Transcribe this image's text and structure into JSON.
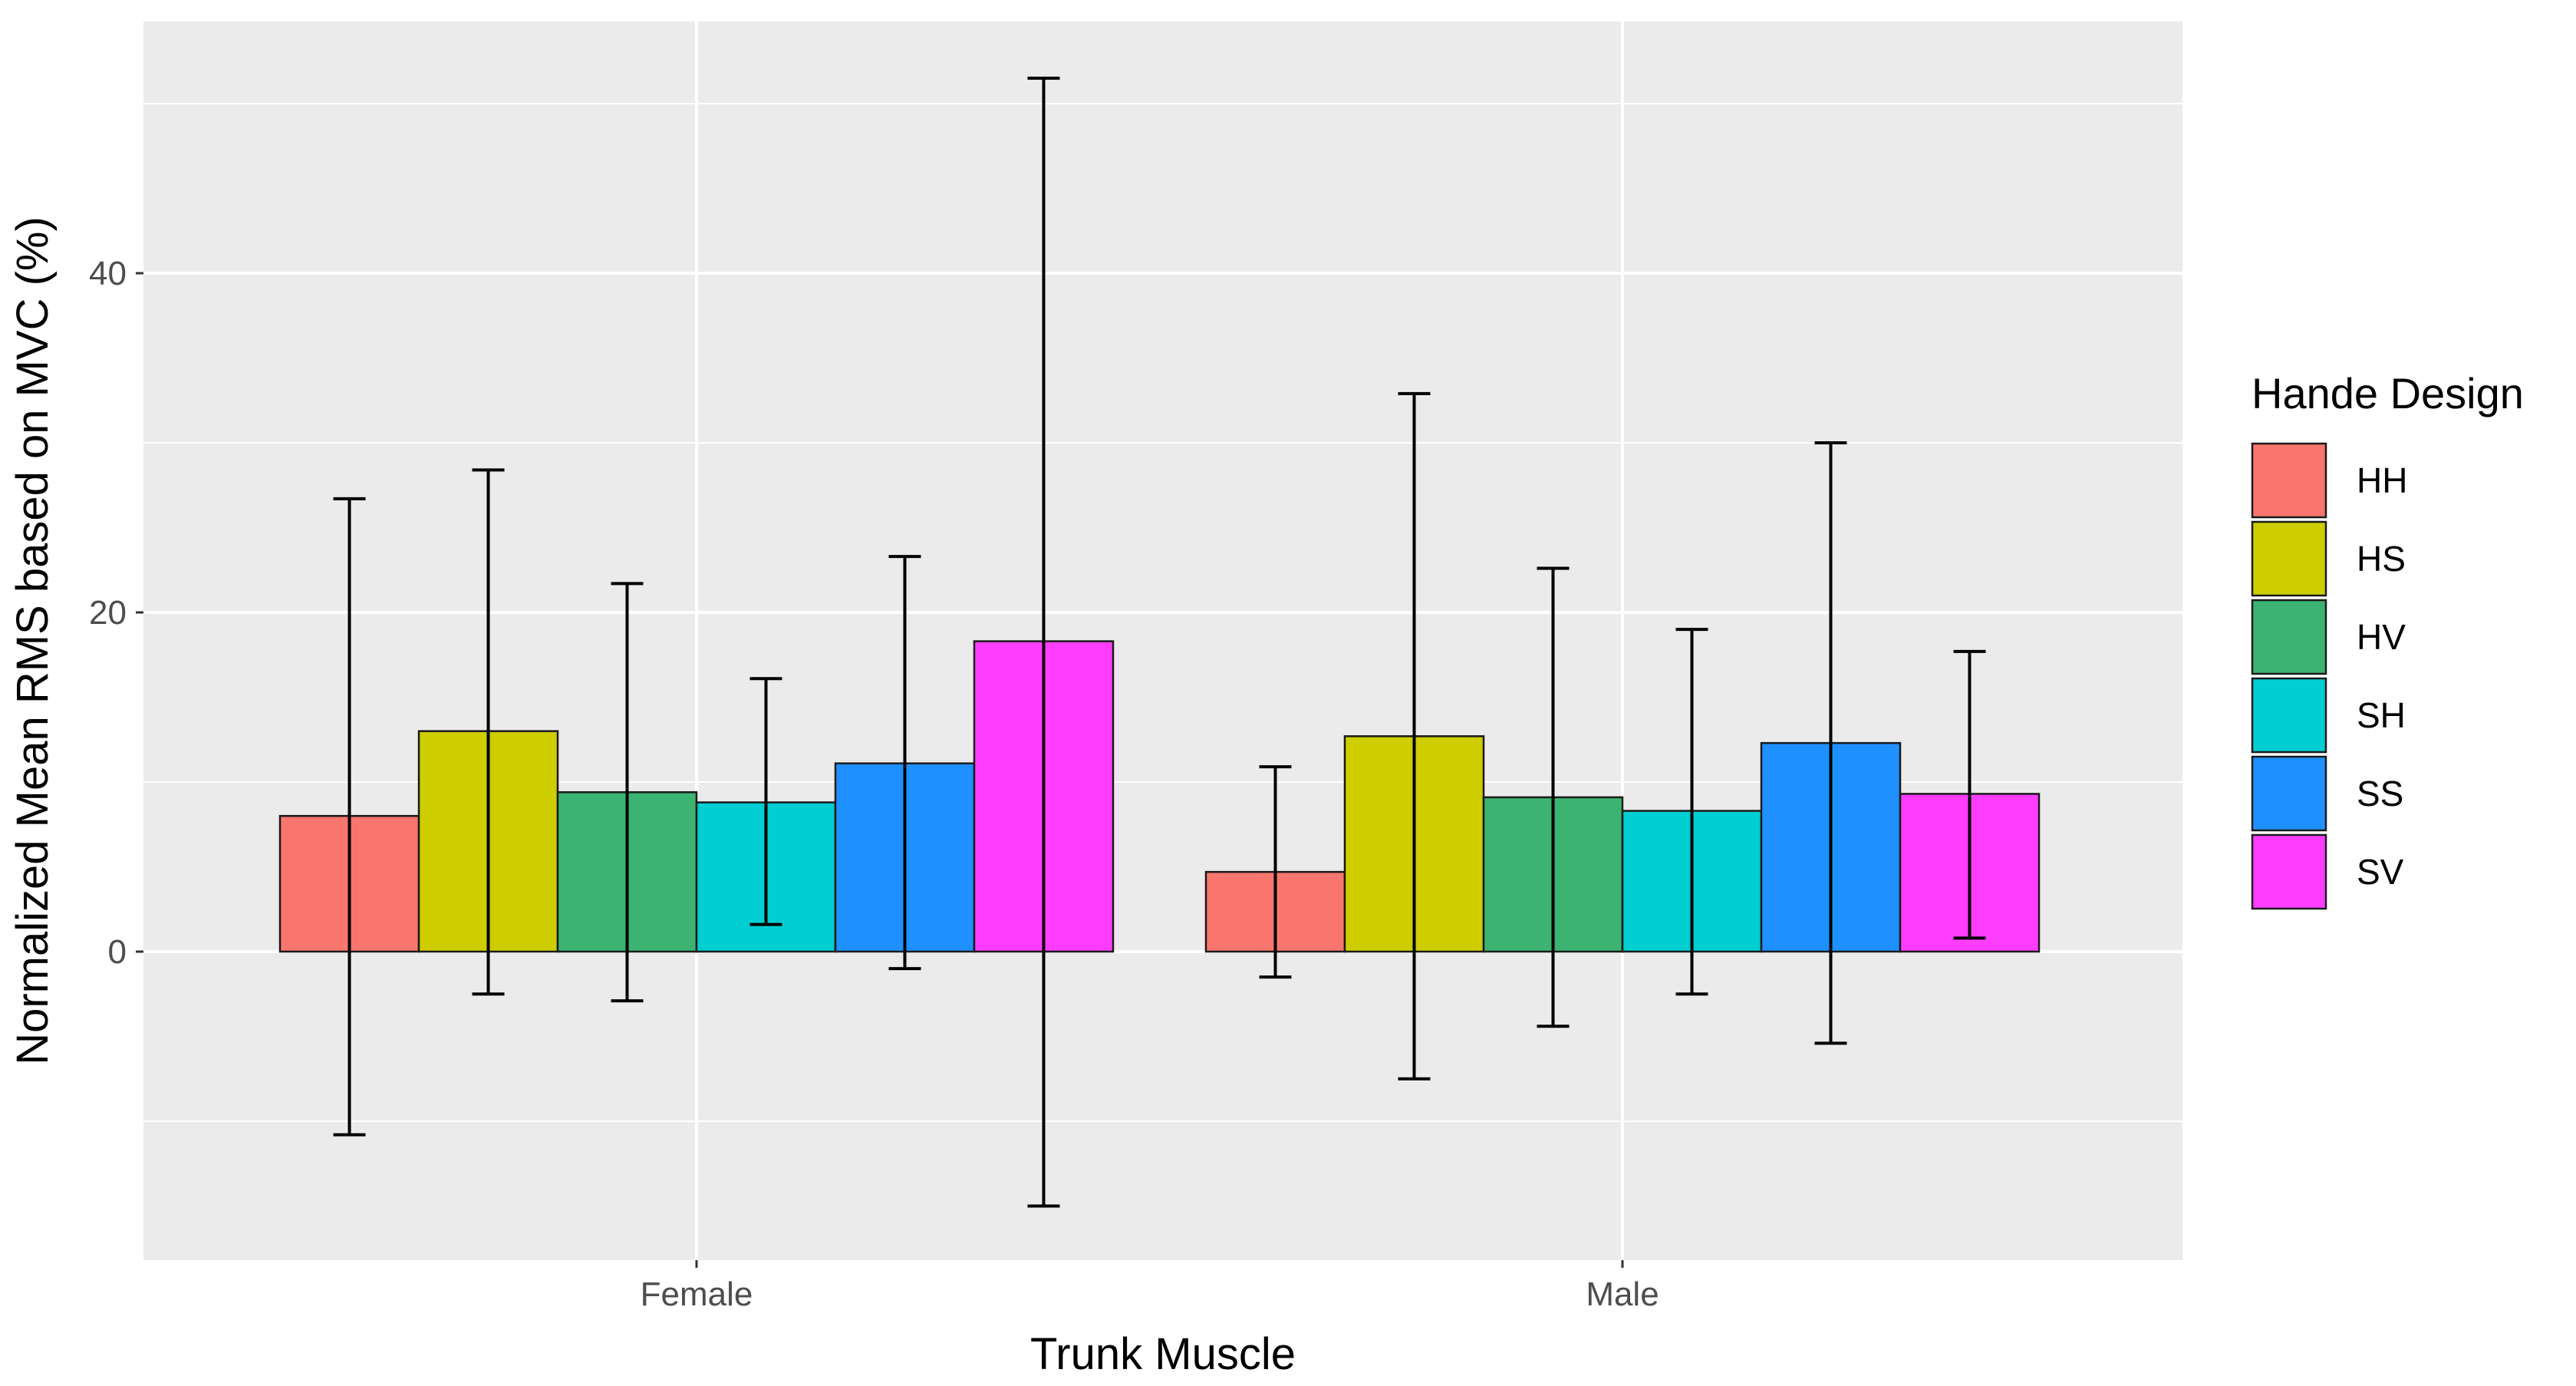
{
  "chart_data": {
    "type": "bar",
    "title": "",
    "xlabel": "Trunk Muscle",
    "ylabel": "Normalized Mean RMS based on MVC (%)",
    "ylim": [
      -18,
      57
    ],
    "yticks": [
      0,
      20,
      40
    ],
    "grid": true,
    "categories": [
      "Female",
      "Male"
    ],
    "legend": {
      "title": "Hande Design",
      "position": "right"
    },
    "series": [
      {
        "name": "HH",
        "color": "#F8766D",
        "values": [
          8.0,
          4.7
        ],
        "error_low": [
          -10.8,
          -1.5
        ],
        "error_high": [
          26.7,
          10.9
        ]
      },
      {
        "name": "HS",
        "color": "#CDCD00",
        "values": [
          13.0,
          12.7
        ],
        "error_low": [
          -2.5,
          -7.5
        ],
        "error_high": [
          28.4,
          32.9
        ]
      },
      {
        "name": "HV",
        "color": "#3CB371",
        "values": [
          9.4,
          9.1
        ],
        "error_low": [
          -2.9,
          -4.4
        ],
        "error_high": [
          21.7,
          22.6
        ]
      },
      {
        "name": "SH",
        "color": "#00CED1",
        "values": [
          8.8,
          8.3
        ],
        "error_low": [
          1.6,
          -2.5
        ],
        "error_high": [
          16.1,
          19.0
        ]
      },
      {
        "name": "SS",
        "color": "#1E90FF",
        "values": [
          11.1,
          12.3
        ],
        "error_low": [
          -1.0,
          -5.4
        ],
        "error_high": [
          23.3,
          30.0
        ]
      },
      {
        "name": "SV",
        "color": "#FF3DFF",
        "values": [
          18.3,
          9.3
        ],
        "error_low": [
          -15.0,
          0.8
        ],
        "error_high": [
          51.5,
          17.7
        ]
      }
    ]
  }
}
